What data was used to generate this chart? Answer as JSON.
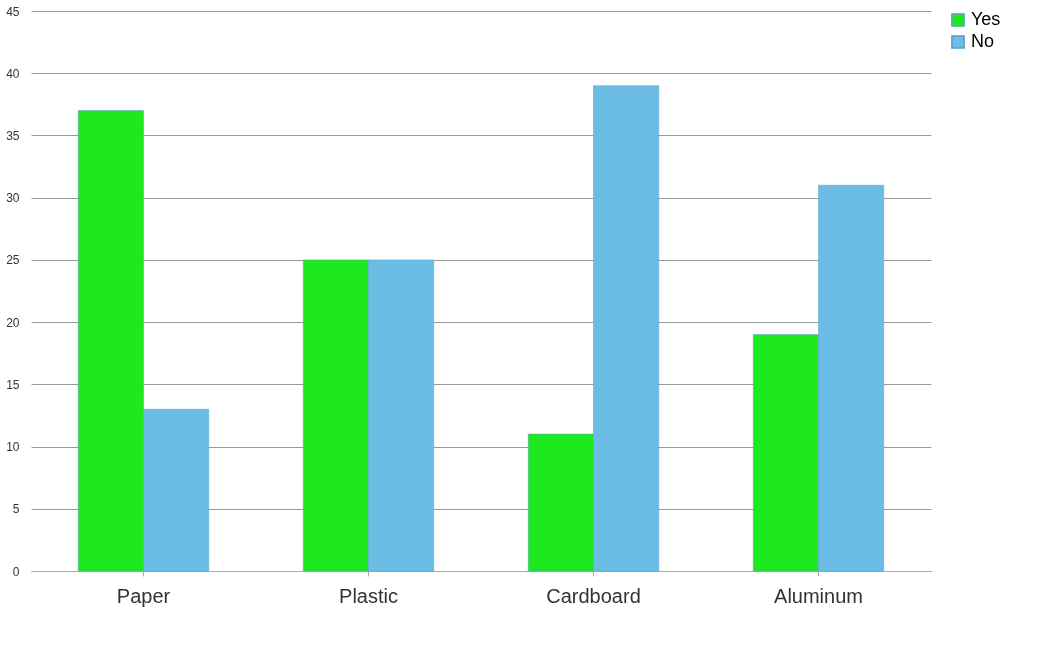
{
  "chart_data": {
    "type": "bar",
    "categories": [
      "Paper",
      "Plastic",
      "Cardboard",
      "Aluminum"
    ],
    "series": [
      {
        "name": "Yes",
        "color": "#1ee81e",
        "values": [
          37,
          25,
          11,
          19
        ]
      },
      {
        "name": "No",
        "color": "#6bbde6",
        "values": [
          13,
          25,
          39,
          31
        ]
      }
    ],
    "ylim": [
      0,
      45
    ],
    "yticks": [
      0,
      5,
      10,
      15,
      20,
      25,
      30,
      35,
      40,
      45
    ],
    "grid": "y",
    "legend": "right"
  }
}
